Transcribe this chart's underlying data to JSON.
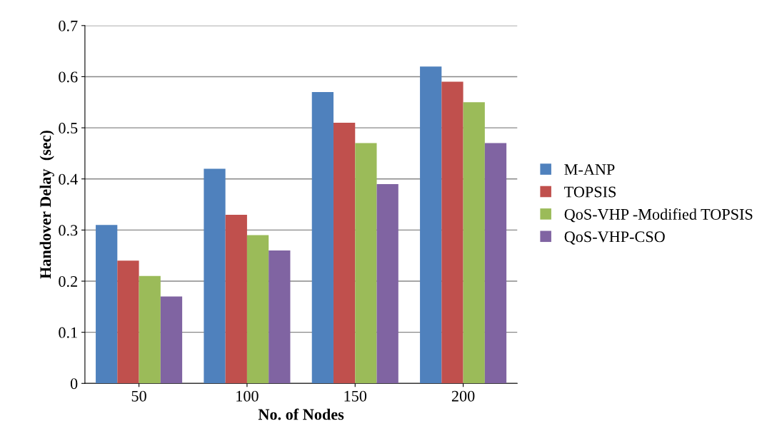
{
  "chart_data": {
    "type": "bar",
    "xlabel": "No. of Nodes",
    "ylabel": "Handover Delay  (sec)",
    "categories": [
      "50",
      "100",
      "150",
      "200"
    ],
    "series": [
      {
        "name": "M-ANP",
        "color": "#4f81bd",
        "values": [
          0.31,
          0.42,
          0.57,
          0.62
        ]
      },
      {
        "name": "TOPSIS",
        "color": "#c0504d",
        "values": [
          0.24,
          0.33,
          0.51,
          0.59
        ]
      },
      {
        "name": "QoS-VHP -Modified TOPSIS",
        "color": "#9bbb59",
        "values": [
          0.21,
          0.29,
          0.47,
          0.55
        ]
      },
      {
        "name": "QoS-VHP-CSO",
        "color": "#8064a2",
        "values": [
          0.17,
          0.26,
          0.39,
          0.47
        ]
      }
    ],
    "ylim": [
      0,
      0.7
    ],
    "yticks": [
      0,
      0.1,
      0.2,
      0.3,
      0.4,
      0.5,
      0.6,
      0.7
    ],
    "grid": "y",
    "legend": "right"
  }
}
